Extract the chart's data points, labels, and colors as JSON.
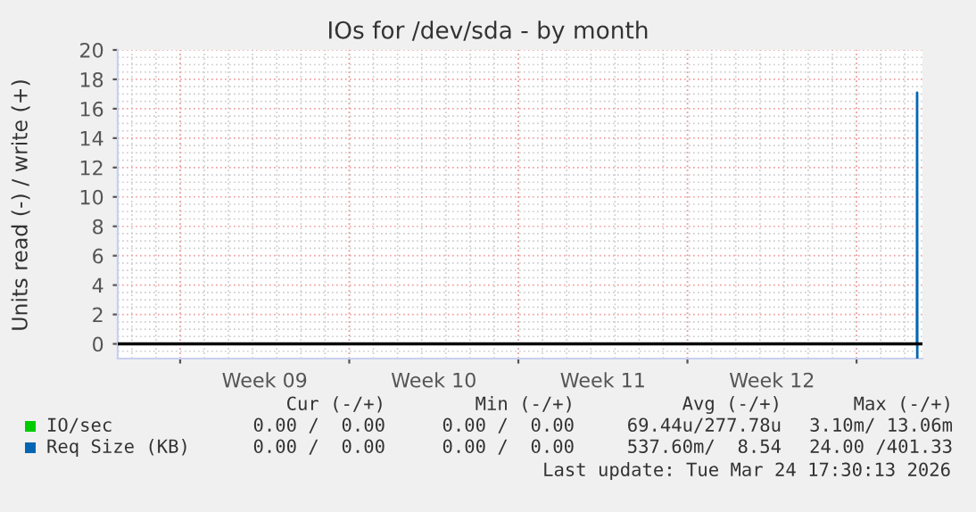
{
  "chart_data": {
    "type": "line",
    "title": "IOs for /dev/sda - by month",
    "ylabel": "Units read (-) / write (+)",
    "xlim": [
      "2026-02-20T10:00",
      "2026-03-25T17:30"
    ],
    "xticks": [
      {
        "value": "2026-02-23",
        "label": null
      },
      {
        "value": "2026-02-26T12:00",
        "label": "Week 09"
      },
      {
        "value": "2026-03-02",
        "label": null
      },
      {
        "value": "2026-03-05T12:00",
        "label": "Week 10"
      },
      {
        "value": "2026-03-09",
        "label": null
      },
      {
        "value": "2026-03-12T12:00",
        "label": "Week 11"
      },
      {
        "value": "2026-03-16",
        "label": null
      },
      {
        "value": "2026-03-19T12:00",
        "label": "Week 12"
      },
      {
        "value": "2026-03-23",
        "label": null
      }
    ],
    "ylim": [
      -1,
      20
    ],
    "yticks": [
      0,
      2,
      4,
      6,
      8,
      10,
      12,
      14,
      16,
      18,
      20
    ],
    "grid": true,
    "legend": "bottom left",
    "ref_lines": [
      {
        "axis": "y",
        "value": 0,
        "color": "#000000"
      }
    ],
    "series": [
      {
        "name": "IO/sec",
        "color": "#00cc00"
      },
      {
        "name": "Req Size (KB)",
        "color": "#0066b3",
        "x": [
          "2026-03-25T12:00",
          "2026-03-25T12:10",
          "2026-03-25T12:20"
        ],
        "values": [
          0,
          17.1,
          -1
        ]
      }
    ],
    "annotations": [
      "Cur (-/+)",
      "Min (-/+)",
      "Avg (-/+)",
      "Max (-/+)",
      "0.00 /  0.00",
      "0.00 /  0.00",
      "69.44u/277.78u",
      "3.10m/ 13.06m",
      "0.00 /  0.00",
      "0.00 /  0.00",
      "537.60m/  8.54",
      "24.00 /401.33",
      "Last update: Tue Mar 24 17:30:13 2026"
    ]
  }
}
